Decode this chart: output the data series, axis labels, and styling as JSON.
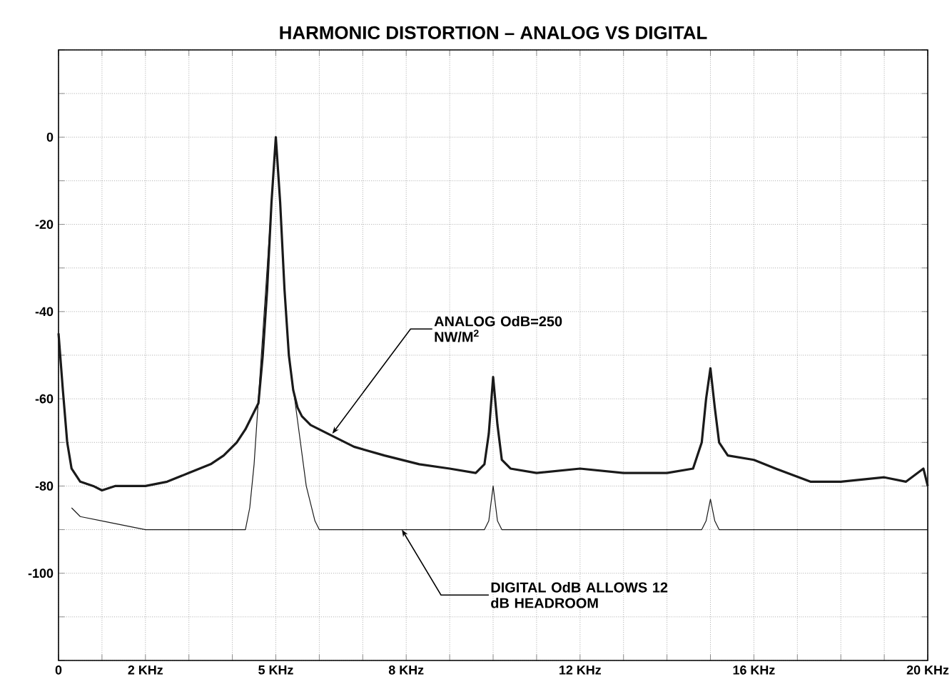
{
  "chart_data": {
    "type": "line",
    "title": "HARMONIC DISTORTION – ANALOG VS DIGITAL",
    "xlim": [
      0,
      20
    ],
    "ylim": [
      -120,
      20
    ],
    "xticks": [
      0,
      {
        "value": 1,
        "label": null
      },
      {
        "value": 2,
        "label": "2 KHz"
      },
      {
        "value": 3,
        "label": null
      },
      {
        "value": 4,
        "label": null
      },
      {
        "value": 5,
        "label": "5 KHz"
      },
      {
        "value": 6,
        "label": null
      },
      {
        "value": 7,
        "label": null
      },
      {
        "value": 8,
        "label": "8 KHz"
      },
      {
        "value": 9,
        "label": null
      },
      {
        "value": 10,
        "label": null
      },
      {
        "value": 11,
        "label": null
      },
      {
        "value": 12,
        "label": "12 KHz"
      },
      {
        "value": 13,
        "label": null
      },
      {
        "value": 14,
        "label": null
      },
      {
        "value": 15,
        "label": null
      },
      {
        "value": 16,
        "label": "16 KHz"
      },
      {
        "value": 17,
        "label": null
      },
      {
        "value": 18,
        "label": null
      },
      {
        "value": 19,
        "label": null
      },
      {
        "value": 20,
        "label": "20 KHz"
      }
    ],
    "yticks": [
      {
        "value": -120,
        "label": null
      },
      {
        "value": -110,
        "label": null
      },
      -100,
      {
        "value": -90,
        "label": null
      },
      -80,
      {
        "value": -70,
        "label": null
      },
      -60,
      {
        "value": -50,
        "label": null
      },
      -40,
      {
        "value": -30,
        "label": null
      },
      -20,
      {
        "value": -10,
        "label": null
      },
      0,
      {
        "value": 10,
        "label": null
      },
      {
        "value": 20,
        "label": null
      }
    ],
    "grid": true,
    "marker": "none",
    "line_style": "solid",
    "series": [
      {
        "color": "#1a1a1a",
        "x": [
          0,
          0.1,
          0.2,
          0.3,
          0.5,
          0.8,
          1.0,
          1.3,
          1.6,
          2.0,
          2.5,
          3.0,
          3.5,
          3.8,
          4.1,
          4.3,
          4.5,
          4.6,
          4.7,
          4.8,
          4.9,
          5.0,
          5.1,
          5.2,
          5.3,
          5.4,
          5.5,
          5.6,
          5.8,
          6.2,
          6.8,
          7.5,
          8.3,
          9.0,
          9.6,
          9.8,
          9.9,
          10.0,
          10.1,
          10.2,
          10.4,
          11,
          12,
          13,
          14,
          14.6,
          14.8,
          14.9,
          15.0,
          15.1,
          15.2,
          15.4,
          16,
          16.5,
          17.3,
          18,
          19,
          19.5,
          19.9,
          20
        ],
        "values": [
          -45,
          -58,
          -70,
          -76,
          -79,
          -80,
          -81,
          -80,
          -80,
          -80,
          -79,
          -77,
          -75,
          -73,
          -70,
          -67,
          -63,
          -61,
          -50,
          -35,
          -15,
          0,
          -15,
          -35,
          -50,
          -58,
          -62,
          -64,
          -66,
          -68,
          -71,
          -73,
          -75,
          -76,
          -77,
          -75,
          -68,
          -55,
          -66,
          -74,
          -76,
          -77,
          -76,
          -77,
          -77,
          -76,
          -70,
          -60,
          -53,
          -62,
          -70,
          -73,
          -74,
          -76,
          -79,
          -79,
          -78,
          -79,
          -76,
          -80
        ]
      },
      {
        "color": "#1a1a1a",
        "x": [
          0.3,
          0.5,
          1.0,
          1.5,
          2.0,
          3.0,
          4.0,
          4.3,
          4.4,
          4.5,
          4.6,
          4.7,
          4.8,
          4.9,
          5.0,
          5.1,
          5.2,
          5.3,
          5.5,
          5.7,
          5.9,
          6.0,
          7.0,
          8.0,
          9.0,
          9.8,
          9.9,
          10.0,
          10.1,
          10.2,
          10.4,
          12,
          14,
          14.8,
          14.9,
          15.0,
          15.1,
          15.2,
          15.4,
          17,
          20
        ],
        "values": [
          -85,
          -87,
          -88,
          -89,
          -90,
          -90,
          -90,
          -90,
          -85,
          -75,
          -60,
          -45,
          -30,
          -15,
          0,
          -15,
          -35,
          -50,
          -65,
          -80,
          -88,
          -90,
          -90,
          -90,
          -90,
          -90,
          -88,
          -80,
          -88,
          -90,
          -90,
          -90,
          -90,
          -90,
          -88,
          -83,
          -88,
          -90,
          -90,
          -90,
          -90
        ]
      }
    ],
    "annotations": [
      {
        "text": "ANALOG OdB=250 NW/M$^{2}$",
        "x": 6.3,
        "y": -68
      },
      {
        "text": "DIGITAL OdB ALLOWS 12 dB HEADROOM",
        "x": 7.9,
        "y": -90
      }
    ]
  }
}
